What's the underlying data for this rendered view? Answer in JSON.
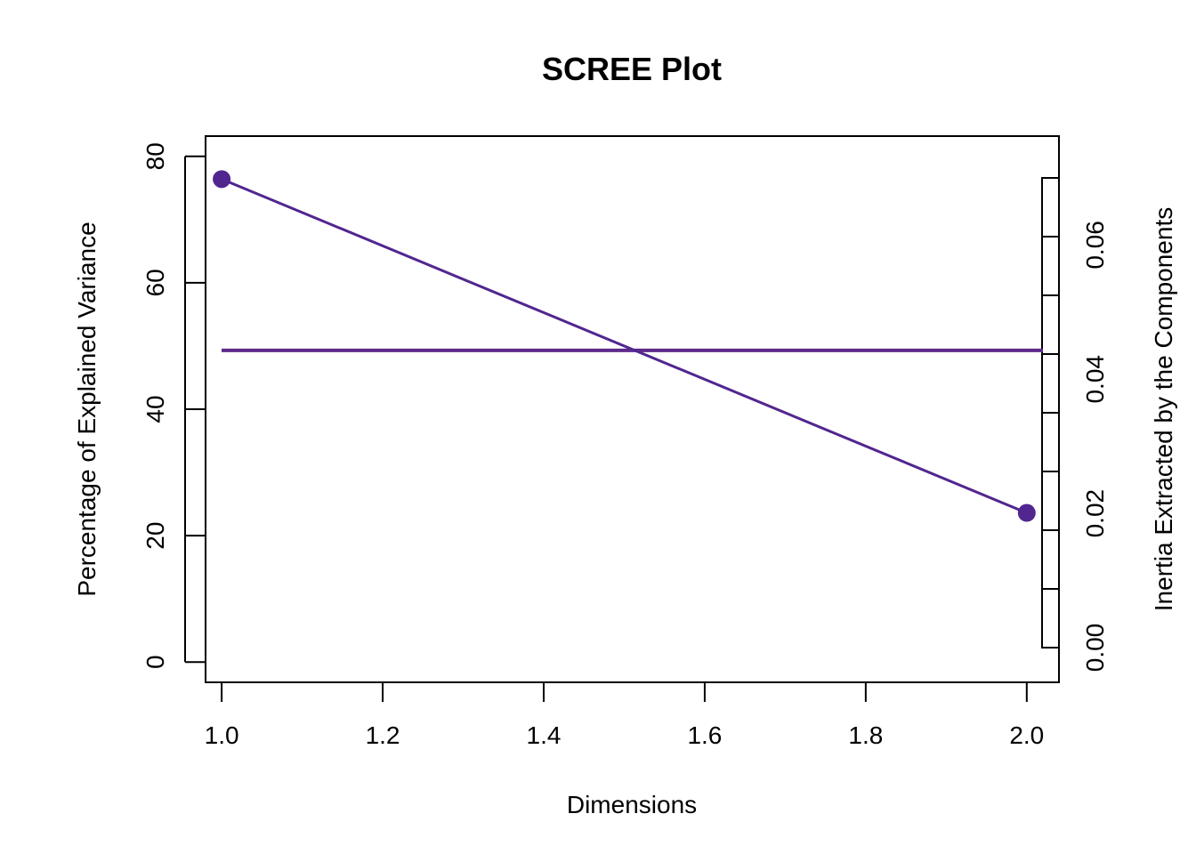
{
  "chart_data": {
    "type": "line",
    "title": "SCREE Plot",
    "xlabel": "Dimensions",
    "ylabel": "Percentage of Explained Variance",
    "ylabel_right": "Inertia Extracted by the Components",
    "x": [
      1,
      2
    ],
    "series": [
      {
        "values": [
          76.4,
          23.6
        ],
        "color": "#51268f"
      }
    ],
    "reference_line": {
      "y": 49.3,
      "color": "#5e2a8c"
    },
    "xlim": [
      0.98,
      2.04
    ],
    "ylim": [
      -3.2,
      83.2
    ],
    "xticks": [
      "1.0",
      "1.2",
      "1.4",
      "1.6",
      "1.8",
      "2.0"
    ],
    "yticks": [
      "0",
      "20",
      "40",
      "60",
      "80"
    ],
    "right_axis": {
      "ylim": [
        0.0,
        0.07
      ],
      "ticks": [
        "0.00",
        "0.02",
        "0.04",
        "0.06"
      ],
      "minor_ticks": 8
    },
    "grid": false,
    "legend": "none"
  }
}
